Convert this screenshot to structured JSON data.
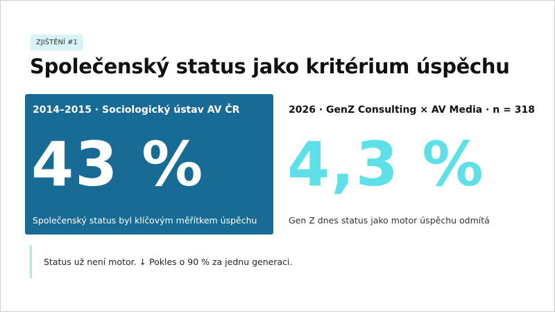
{
  "tag": "ZJIŠTĚNÍ #1",
  "title": "Společenský status jako kritérium úspěchu",
  "panels": [
    {
      "header": "2014–2015 · Sociologický ústav AV ČR",
      "value": "43 %",
      "caption": "Společenský status byl klíčovým měřítkem úspěchu"
    },
    {
      "header": "2026 · GenZ Consulting × AV Media · n = 318",
      "value": "4,3 %",
      "caption": "Gen Z dnes status jako motor úspěchu odmítá"
    }
  ],
  "note": "Status už není motor. ↓ Pokles o 90 % za jednu generaci."
}
